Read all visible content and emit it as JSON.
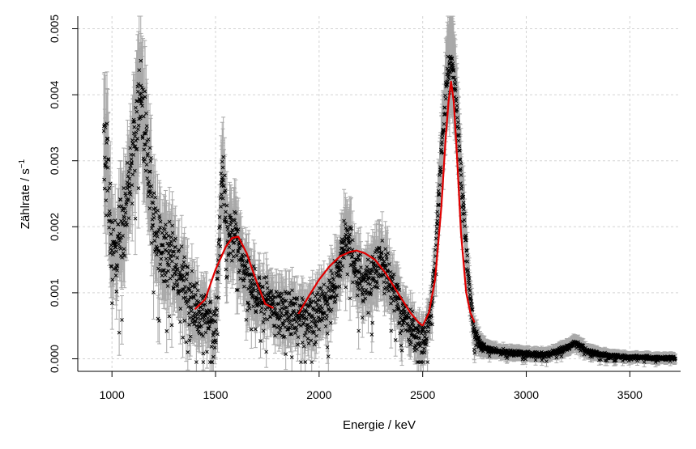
{
  "chart_data": {
    "type": "scatter",
    "title": "",
    "xlabel": "Energie / keV",
    "ylabel_main": "Zählrate / s",
    "ylabel_sup": "−1",
    "xlim": [
      835,
      3745
    ],
    "ylim": [
      -0.00019,
      0.00519
    ],
    "xticks": [
      1000,
      1500,
      2000,
      2500,
      3000,
      3500
    ],
    "xtick_labels": [
      "1000",
      "1500",
      "2000",
      "2500",
      "3000",
      "3500"
    ],
    "yticks": [
      0.0,
      0.001,
      0.002,
      0.003,
      0.004,
      0.005
    ],
    "ytick_labels": [
      "0.000",
      "0.001",
      "0.002",
      "0.003",
      "0.004",
      "0.005"
    ],
    "grid": true,
    "colors": {
      "points": "#000000",
      "errorbars": "#a9a9a9",
      "fit": "#e00000",
      "grid": "#d3d3d3"
    },
    "series": [
      {
        "kind": "measurement",
        "marker": "x",
        "errorbars": true,
        "envelope_x": [
          960,
          980,
          1000,
          1030,
          1060,
          1100,
          1130,
          1160,
          1200,
          1250,
          1300,
          1350,
          1400,
          1450,
          1500,
          1530,
          1560,
          1600,
          1650,
          1700,
          1750,
          1800,
          1850,
          1900,
          1950,
          2000,
          2050,
          2100,
          2130,
          2160,
          2200,
          2250,
          2300,
          2350,
          2400,
          2450,
          2500,
          2530,
          2560,
          2590,
          2620,
          2640,
          2660,
          2690,
          2720,
          2750,
          2780,
          2820,
          2900,
          3000,
          3100,
          3200,
          3240,
          3300,
          3400,
          3500,
          3600,
          3720
        ],
        "envelope_y": [
          0.0045,
          0.0039,
          0.0022,
          0.0026,
          0.0027,
          0.0038,
          0.0047,
          0.0041,
          0.0027,
          0.0022,
          0.0021,
          0.0016,
          0.0013,
          0.0011,
          0.00085,
          0.0033,
          0.0024,
          0.0023,
          0.00165,
          0.00135,
          0.00125,
          0.0011,
          0.0011,
          0.00105,
          0.00095,
          0.00115,
          0.0013,
          0.0017,
          0.0024,
          0.0019,
          0.0016,
          0.0016,
          0.0019,
          0.00145,
          0.00105,
          0.00075,
          0.0005,
          0.00075,
          0.0017,
          0.0034,
          0.0046,
          0.0047,
          0.0042,
          0.0028,
          0.0014,
          0.00055,
          0.00028,
          0.0002,
          0.00015,
          0.00012,
          0.0001,
          0.00022,
          0.0003,
          0.00015,
          8e-05,
          6e-05,
          5e-05,
          4e-05
        ],
        "spread": [
          0.0022,
          0.002,
          0.0014,
          0.0014,
          0.0014,
          0.0013,
          0.0014,
          0.0013,
          0.0013,
          0.0012,
          0.0012,
          0.0011,
          0.001,
          0.0009,
          0.0008,
          0.0009,
          0.0009,
          0.0009,
          0.0009,
          0.0008,
          0.0008,
          0.0008,
          0.0008,
          0.0008,
          0.0008,
          0.0008,
          0.0008,
          0.0008,
          0.0008,
          0.0008,
          0.0008,
          0.0008,
          0.0008,
          0.0007,
          0.0007,
          0.0006,
          0.0005,
          0.0005,
          0.0005,
          0.0005,
          0.0005,
          0.0005,
          0.0005,
          0.0005,
          0.0004,
          0.0003,
          0.00018,
          0.00012,
          0.0001,
          9e-05,
          9e-05,
          0.0001,
          0.0001,
          9e-05,
          8e-05,
          7e-05,
          7e-05,
          7e-05
        ]
      },
      {
        "kind": "fit",
        "segments": [
          {
            "x": [
              1400,
              1450,
              1500,
              1550,
              1580,
              1610,
              1650,
              1700,
              1740,
              1780
            ],
            "y": [
              0.00075,
              0.0009,
              0.00135,
              0.0017,
              0.00183,
              0.00185,
              0.0016,
              0.00115,
              0.00083,
              0.00077
            ]
          },
          {
            "x": [
              1900,
              1950,
              2000,
              2050,
              2100,
              2150,
              2180,
              2220,
              2270,
              2320,
              2380,
              2440,
              2480,
              2500
            ],
            "y": [
              0.00068,
              0.00095,
              0.0012,
              0.0014,
              0.00155,
              0.00162,
              0.00164,
              0.0016,
              0.0015,
              0.0013,
              0.001,
              0.0007,
              0.00055,
              0.0005
            ]
          },
          {
            "x": [
              2500,
              2530,
              2560,
              2590,
              2610,
              2625,
              2637,
              2650,
              2665,
              2685,
              2710,
              2730,
              2750
            ],
            "y": [
              0.0005,
              0.0007,
              0.0012,
              0.0023,
              0.0033,
              0.0039,
              0.0042,
              0.0039,
              0.0031,
              0.0019,
              0.001,
              0.0007,
              0.00055
            ]
          }
        ]
      }
    ]
  }
}
